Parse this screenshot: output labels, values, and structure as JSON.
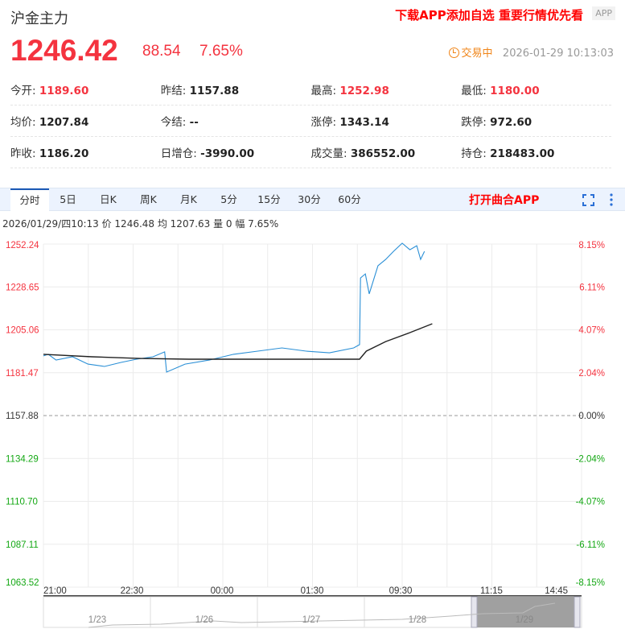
{
  "header": {
    "title": "沪金主力",
    "promo": "下载APP添加自选 重要行情优先看",
    "app_button": "APP",
    "price": "1246.42",
    "change": "88.54",
    "change_pct": "7.65%",
    "status": "交易中",
    "datetime": "2026-01-29 10:13:03"
  },
  "stats": [
    [
      {
        "label": "今开:",
        "value": "1189.60",
        "up": true
      },
      {
        "label": "昨结:",
        "value": "1157.88"
      },
      {
        "label": "最高:",
        "value": "1252.98",
        "up": true
      },
      {
        "label": "最低:",
        "value": "1180.00",
        "up": true
      }
    ],
    [
      {
        "label": "均价:",
        "value": "1207.84"
      },
      {
        "label": "今结:",
        "value": "--"
      },
      {
        "label": "涨停:",
        "value": "1343.14"
      },
      {
        "label": "跌停:",
        "value": "972.60"
      }
    ],
    [
      {
        "label": "昨收:",
        "value": "1186.20"
      },
      {
        "label": "日增仓:",
        "value": "-3990.00"
      },
      {
        "label": "成交量:",
        "value": "386552.00"
      },
      {
        "label": "持仓:",
        "value": "218483.00"
      }
    ]
  ],
  "tabs": [
    "分时",
    "5日",
    "日K",
    "周K",
    "月K",
    "5分",
    "15分",
    "30分",
    "60分"
  ],
  "open_app": "打开曲合APP",
  "info_line": "2026/01/29/四10:13  价 1246.48  均 1207.63  量 0  幅 7.65%",
  "colors": {
    "up": "#f4333f",
    "down": "#14a814",
    "price_line": "#2a8fd6",
    "avg_line": "#222222"
  },
  "chart_data": {
    "type": "line",
    "x_unit": "trading minutes since 21:00",
    "xlim": [
      0,
      555
    ],
    "ylim": [
      1063.52,
      1252.24
    ],
    "base": 1157.88,
    "y_ticks": [
      "1252.24",
      "1228.65",
      "1205.06",
      "1181.47",
      "1157.88",
      "1134.29",
      "1110.70",
      "1087.11",
      "1063.52"
    ],
    "pct_ticks": [
      "8.15%",
      "6.11%",
      "4.07%",
      "2.04%",
      "0.00%",
      "-2.04%",
      "-4.07%",
      "-6.11%",
      "-8.15%"
    ],
    "x_ticks": [
      "21:00",
      "22:30",
      "00:00",
      "01:30",
      "09:30",
      "11:15",
      "14:45"
    ],
    "series": [
      {
        "name": "价",
        "x": [
          0,
          5,
          13,
          30,
          46,
          63,
          80,
          96,
          113,
          125,
          127,
          146,
          171,
          196,
          221,
          246,
          271,
          295,
          320,
          326,
          327,
          332,
          336,
          345,
          353,
          361,
          370,
          378,
          385,
          389,
          393
        ],
        "y": [
          1190.7,
          1191.6,
          1188.4,
          1190.2,
          1186.2,
          1184.9,
          1187.1,
          1188.9,
          1190.2,
          1192.9,
          1181.8,
          1186.2,
          1188.4,
          1191.6,
          1193.3,
          1195.1,
          1193.3,
          1192.4,
          1195.1,
          1196.9,
          1233.6,
          1235.8,
          1224.8,
          1240.3,
          1243.8,
          1248.2,
          1252.7,
          1249.1,
          1251.3,
          1243.8,
          1248.2
        ]
      },
      {
        "name": "均",
        "x": [
          0,
          50,
          100,
          150,
          200,
          250,
          300,
          326,
          333,
          353,
          378,
          401
        ],
        "y": [
          1191.6,
          1190.2,
          1189.3,
          1188.9,
          1188.9,
          1188.9,
          1188.9,
          1188.9,
          1193.3,
          1198.6,
          1203.5,
          1208.4
        ]
      }
    ],
    "navigator": {
      "dates": [
        "1/23",
        "1/26",
        "1/27",
        "1/28",
        "1/29"
      ],
      "selected": "1/29"
    }
  }
}
